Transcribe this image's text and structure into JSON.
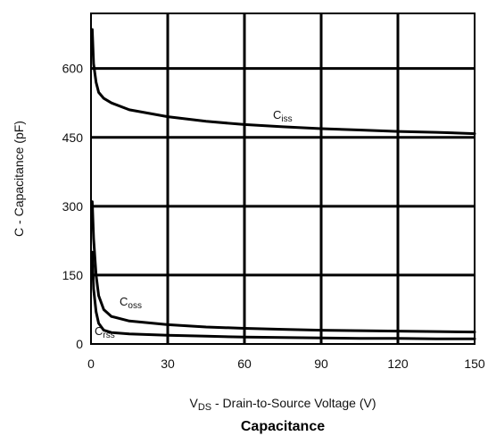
{
  "chart_data": {
    "type": "line",
    "title": "Capacitance",
    "xlabel_main": "V",
    "xlabel_sub": "DS",
    "xlabel_rest": " - Drain-to-Source Voltage (V)",
    "ylabel": "C - Capacitance (pF)",
    "xlim": [
      0,
      150
    ],
    "ylim": [
      0,
      720
    ],
    "x_ticks": [
      "0",
      "30",
      "60",
      "90",
      "120",
      "150"
    ],
    "y_ticks": [
      "0",
      "150",
      "300",
      "450",
      "600"
    ],
    "series": [
      {
        "name": "Ciss",
        "label_main": "C",
        "label_sub": "iss",
        "x": [
          0.5,
          1,
          2,
          3,
          5,
          8,
          15,
          30,
          45,
          60,
          75,
          90,
          105,
          120,
          135,
          150
        ],
        "y": [
          685,
          610,
          570,
          548,
          535,
          525,
          510,
          495,
          485,
          478,
          473,
          469,
          466,
          463,
          461,
          458
        ]
      },
      {
        "name": "Coss",
        "label_main": "C",
        "label_sub": "oss",
        "x": [
          0.5,
          1,
          2,
          3,
          5,
          8,
          15,
          30,
          45,
          60,
          75,
          90,
          105,
          120,
          135,
          150
        ],
        "y": [
          310,
          230,
          150,
          105,
          75,
          60,
          50,
          42,
          37,
          34,
          32,
          30,
          29,
          28,
          27,
          26
        ]
      },
      {
        "name": "Crss",
        "label_main": "C",
        "label_sub": "rss",
        "x": [
          0.5,
          1,
          2,
          3,
          5,
          8,
          15,
          30,
          45,
          60,
          75,
          90,
          105,
          120,
          135,
          150
        ],
        "y": [
          200,
          120,
          70,
          45,
          30,
          25,
          22,
          19,
          17,
          15,
          14,
          13,
          12,
          12,
          11,
          11
        ]
      }
    ]
  }
}
